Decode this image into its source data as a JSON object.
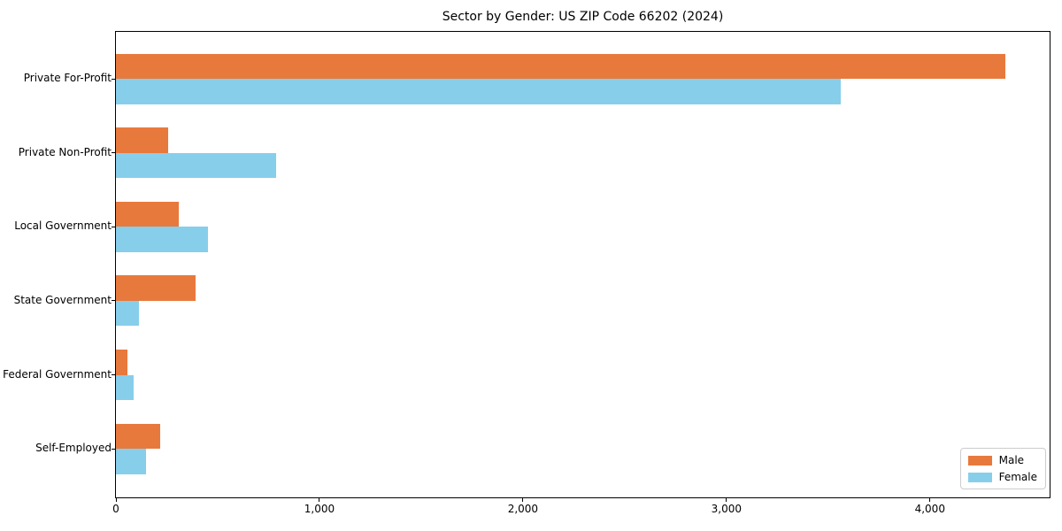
{
  "chart_data": {
    "type": "bar",
    "orientation": "horizontal",
    "title": "Sector by Gender: US ZIP Code 66202 (2024)",
    "categories": [
      "Private For-Profit",
      "Private Non-Profit",
      "Local Government",
      "State Government",
      "Federal Government",
      "Self-Employed"
    ],
    "series": [
      {
        "name": "Male",
        "color": "#E8793D",
        "values": [
          4370,
          258,
          309,
          393,
          58,
          219
        ]
      },
      {
        "name": "Female",
        "color": "#87CEEB",
        "values": [
          3560,
          787,
          450,
          113,
          88,
          149
        ]
      }
    ],
    "xlabel": "",
    "ylabel": "",
    "xlim": [
      0,
      4588
    ],
    "xticks": [
      0,
      1000,
      2000,
      3000,
      4000
    ],
    "xtick_labels": [
      "0",
      "1,000",
      "2,000",
      "3,000",
      "4,000"
    ],
    "grid": false,
    "legend_position": "lower right",
    "background_color": "#ffffff",
    "axis_color": "#000000",
    "legend_border_color": "#cccccc"
  }
}
